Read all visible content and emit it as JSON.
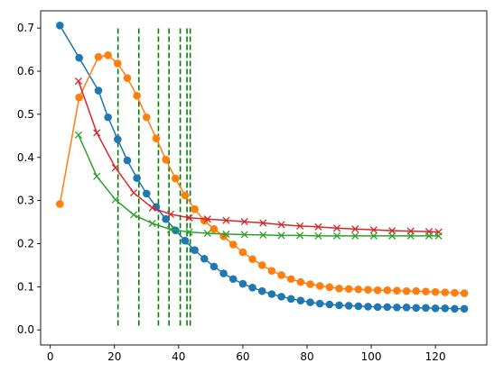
{
  "chart_data": {
    "type": "line",
    "title": "",
    "xlabel": "",
    "ylabel": "",
    "xlim": [
      -3,
      136
    ],
    "ylim": [
      -0.035,
      0.74
    ],
    "grid": false,
    "x_ticks": [
      0,
      20,
      40,
      60,
      80,
      100,
      120
    ],
    "y_ticks": [
      0.0,
      0.1,
      0.2,
      0.3,
      0.4,
      0.5,
      0.6,
      0.7
    ],
    "x_tick_labels": [
      "0",
      "20",
      "40",
      "60",
      "80",
      "100",
      "120"
    ],
    "y_tick_labels": [
      "0.0",
      "0.1",
      "0.2",
      "0.3",
      "0.4",
      "0.5",
      "0.6",
      "0.7"
    ],
    "vlines": {
      "color": "#008000",
      "style": "dashed",
      "x": [
        21.1,
        27.6,
        33.7,
        37.0,
        40.5,
        42.6,
        43.6
      ],
      "ymin": 0.01,
      "ymax": 0.705
    },
    "series": [
      {
        "color": "#1f77b4",
        "marker": "circle",
        "x": [
          3,
          9,
          15,
          18,
          21,
          24,
          27,
          30,
          33,
          36,
          39,
          42,
          45,
          48,
          51,
          54,
          57,
          60,
          63,
          66,
          69,
          72,
          75,
          78,
          81,
          84,
          87,
          90,
          93,
          96,
          99,
          102,
          105,
          108,
          111,
          114,
          117,
          120,
          123,
          126,
          129
        ],
        "y": [
          0.706,
          0.631,
          0.555,
          0.493,
          0.442,
          0.393,
          0.352,
          0.316,
          0.285,
          0.257,
          0.231,
          0.207,
          0.185,
          0.165,
          0.147,
          0.131,
          0.118,
          0.107,
          0.098,
          0.09,
          0.083,
          0.077,
          0.072,
          0.068,
          0.064,
          0.061,
          0.059,
          0.057,
          0.056,
          0.055,
          0.054,
          0.053,
          0.053,
          0.052,
          0.052,
          0.051,
          0.051,
          0.05,
          0.05,
          0.049,
          0.049
        ]
      },
      {
        "color": "#ff7f0e",
        "marker": "circle",
        "x": [
          3,
          9,
          15,
          18,
          21,
          24,
          27,
          30,
          33,
          36,
          39,
          42,
          45,
          48,
          51,
          54,
          57,
          60,
          63,
          66,
          69,
          72,
          75,
          78,
          81,
          84,
          87,
          90,
          93,
          96,
          99,
          102,
          105,
          108,
          111,
          114,
          117,
          120,
          123,
          126,
          129
        ],
        "y": [
          0.292,
          0.539,
          0.633,
          0.637,
          0.618,
          0.584,
          0.543,
          0.493,
          0.444,
          0.395,
          0.351,
          0.312,
          0.28,
          0.253,
          0.234,
          0.217,
          0.198,
          0.18,
          0.164,
          0.15,
          0.137,
          0.127,
          0.118,
          0.111,
          0.106,
          0.102,
          0.099,
          0.096,
          0.095,
          0.094,
          0.093,
          0.092,
          0.092,
          0.091,
          0.09,
          0.09,
          0.089,
          0.088,
          0.087,
          0.086,
          0.085
        ]
      },
      {
        "color": "#d62728",
        "marker": "x",
        "x": [
          8.8,
          14.5,
          20.3,
          26,
          31.8,
          37.5,
          43.3,
          49,
          54.8,
          60.5,
          66.3,
          72,
          77.8,
          83.5,
          89.3,
          95,
          100.8,
          106.5,
          112.3,
          118,
          121
        ],
        "y": [
          0.577,
          0.457,
          0.376,
          0.318,
          0.283,
          0.268,
          0.26,
          0.257,
          0.254,
          0.251,
          0.248,
          0.244,
          0.241,
          0.239,
          0.236,
          0.234,
          0.232,
          0.23,
          0.229,
          0.228,
          0.227
        ]
      },
      {
        "color": "#2ca02c",
        "marker": "x",
        "x": [
          8.8,
          14.5,
          20.3,
          26,
          31.8,
          37.5,
          43.3,
          49,
          54.8,
          60.5,
          66.3,
          72,
          77.8,
          83.5,
          89.3,
          95,
          100.8,
          106.5,
          112.3,
          118,
          121
        ],
        "y": [
          0.452,
          0.356,
          0.302,
          0.267,
          0.247,
          0.233,
          0.227,
          0.224,
          0.222,
          0.221,
          0.22,
          0.219,
          0.219,
          0.218,
          0.218,
          0.218,
          0.218,
          0.218,
          0.218,
          0.218,
          0.218
        ]
      }
    ]
  }
}
